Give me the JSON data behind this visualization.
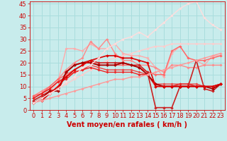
{
  "background_color": "#c8ecec",
  "grid_color": "#aadddd",
  "xlabel": "Vent moyen/en rafales ( km/h )",
  "xlim": [
    -0.5,
    23.5
  ],
  "ylim": [
    0,
    46
  ],
  "yticks": [
    0,
    5,
    10,
    15,
    20,
    25,
    30,
    35,
    40,
    45
  ],
  "xticks": [
    0,
    1,
    2,
    3,
    4,
    5,
    6,
    7,
    8,
    9,
    10,
    11,
    12,
    13,
    14,
    15,
    16,
    17,
    18,
    19,
    20,
    21,
    22,
    23
  ],
  "lines": [
    {
      "x": [
        0,
        1,
        2,
        3,
        4,
        5,
        6,
        7,
        8,
        9,
        10,
        11,
        12,
        13,
        14,
        15,
        16,
        17,
        18,
        19,
        20,
        21,
        22,
        23
      ],
      "y": [
        3,
        5,
        7,
        9,
        11,
        13,
        15,
        17,
        19,
        21,
        22,
        23,
        24,
        25,
        26,
        27,
        27,
        28,
        28,
        28,
        28,
        28,
        28,
        28
      ],
      "color": "#ffcccc",
      "lw": 1.0,
      "marker": "D",
      "ms": 1.8
    },
    {
      "x": [
        0,
        1,
        2,
        3,
        4,
        5,
        6,
        7,
        8,
        9,
        10,
        11,
        12,
        13,
        14,
        15,
        16,
        17,
        18,
        19,
        20,
        21,
        22,
        23
      ],
      "y": [
        4,
        6,
        8,
        12,
        26,
        26,
        25,
        28,
        26,
        26,
        28,
        24,
        23,
        23,
        22,
        18,
        14,
        24,
        27,
        22,
        21,
        19,
        23,
        23
      ],
      "color": "#ffaaaa",
      "lw": 1.0,
      "marker": "D",
      "ms": 1.8
    },
    {
      "x": [
        0,
        1,
        2,
        3,
        4,
        5,
        6,
        7,
        8,
        9,
        10,
        11,
        12,
        13,
        14,
        15,
        16,
        17,
        18,
        19,
        20,
        21,
        22,
        23
      ],
      "y": [
        6,
        8,
        10,
        13,
        17,
        20,
        22,
        29,
        26,
        30,
        24,
        21,
        21,
        19,
        19,
        18,
        16,
        19,
        19,
        18,
        18,
        19,
        19,
        19
      ],
      "color": "#ff8888",
      "lw": 1.0,
      "marker": "D",
      "ms": 1.8
    },
    {
      "x": [
        0,
        1,
        2,
        3,
        4,
        5,
        6,
        7,
        8,
        9,
        10,
        11,
        12,
        13,
        14,
        15,
        16,
        17,
        18,
        19,
        20,
        21,
        22,
        23
      ],
      "y": [
        6,
        7,
        10,
        13,
        15,
        17,
        19,
        21,
        19,
        19,
        19,
        19,
        19,
        18,
        16,
        15,
        15,
        25,
        27,
        22,
        21,
        21,
        22,
        23
      ],
      "color": "#ff6666",
      "lw": 1.0,
      "marker": "D",
      "ms": 1.8
    },
    {
      "x": [
        0,
        1,
        2,
        3,
        4,
        5,
        6,
        7,
        8,
        9,
        10,
        11,
        12,
        13,
        14,
        15,
        16,
        17,
        18,
        19,
        20,
        21,
        22,
        23
      ],
      "y": [
        5,
        7,
        9,
        12,
        14,
        16,
        17,
        19,
        18,
        17,
        17,
        17,
        17,
        16,
        15,
        11,
        11,
        11,
        11,
        11,
        11,
        10,
        10,
        11
      ],
      "color": "#ee4444",
      "lw": 1.0,
      "marker": "D",
      "ms": 1.8
    },
    {
      "x": [
        0,
        1,
        2,
        3,
        4,
        5,
        6,
        7,
        8,
        9,
        10,
        11,
        12,
        13,
        14,
        15,
        16,
        17,
        18,
        19,
        20,
        21,
        22,
        23
      ],
      "y": [
        5,
        7,
        9,
        12,
        13,
        16,
        17,
        18,
        17,
        16,
        16,
        16,
        16,
        15,
        15,
        10,
        10,
        10,
        11,
        11,
        10,
        10,
        10,
        11
      ],
      "color": "#ee2222",
      "lw": 1.0,
      "marker": "D",
      "ms": 1.8
    },
    {
      "x": [
        0,
        1,
        2,
        3,
        4,
        5,
        6,
        7,
        8,
        9,
        10,
        11,
        12,
        13,
        14,
        15,
        16,
        17,
        18,
        19,
        20,
        21,
        22,
        23
      ],
      "y": [
        4,
        6,
        8,
        9,
        16,
        19,
        20,
        21,
        20,
        20,
        20,
        20,
        19,
        19,
        16,
        1,
        1,
        1,
        10,
        10,
        21,
        9,
        8,
        11
      ],
      "color": "#cc2222",
      "lw": 1.2,
      "marker": "D",
      "ms": 2.0
    },
    {
      "x": [
        0,
        1,
        2,
        3,
        4,
        5,
        6,
        7,
        8,
        9,
        10,
        11,
        12,
        13,
        14,
        15,
        16,
        17,
        18,
        19,
        20,
        21,
        22,
        23
      ],
      "y": [
        3,
        5,
        8,
        8,
        16,
        19,
        20,
        20,
        19,
        19,
        19,
        20,
        19,
        18,
        15,
        11,
        10,
        10,
        10,
        10,
        10,
        10,
        9,
        11
      ],
      "color": "#aa0000",
      "lw": 1.3,
      "marker": "D",
      "ms": 2.2
    },
    {
      "x": [
        1,
        2,
        3,
        4,
        5,
        6,
        7,
        8,
        9,
        10,
        11,
        12,
        13,
        14,
        15,
        16,
        17,
        18,
        19,
        20,
        21,
        22,
        23
      ],
      "y": [
        4,
        7,
        10,
        14,
        17,
        19,
        21,
        22,
        23,
        23,
        22,
        22,
        21,
        20,
        10,
        10,
        10,
        10,
        10,
        10,
        10,
        10,
        11
      ],
      "color": "#dd0000",
      "lw": 1.2,
      "marker": "D",
      "ms": 2.0
    },
    {
      "x": [
        0,
        1,
        2,
        3,
        4,
        5,
        6,
        7,
        8,
        9,
        10,
        11,
        12,
        13,
        14,
        15,
        16,
        17,
        18,
        19,
        20,
        21,
        22,
        23
      ],
      "y": [
        3,
        4,
        5,
        6,
        7,
        8,
        9,
        10,
        11,
        12,
        13,
        13,
        14,
        14,
        15,
        16,
        17,
        18,
        19,
        20,
        21,
        22,
        23,
        24
      ],
      "color": "#ff9999",
      "lw": 1.0,
      "marker": "D",
      "ms": 1.8
    },
    {
      "x": [
        0,
        1,
        2,
        3,
        4,
        5,
        6,
        7,
        8,
        9,
        10,
        11,
        12,
        13,
        14,
        15,
        16,
        17,
        18,
        19,
        20,
        21,
        22,
        23
      ],
      "y": [
        3,
        5,
        7,
        9,
        12,
        14,
        18,
        19,
        22,
        26,
        28,
        30,
        31,
        33,
        31,
        34,
        37,
        40,
        43,
        45,
        46,
        39,
        36,
        34
      ],
      "color": "#ffdddd",
      "lw": 1.0,
      "marker": "D",
      "ms": 1.8
    }
  ],
  "xlabel_color": "#cc0000",
  "tick_color": "#cc0000",
  "xlabel_fontsize": 7,
  "tick_fontsize": 6
}
